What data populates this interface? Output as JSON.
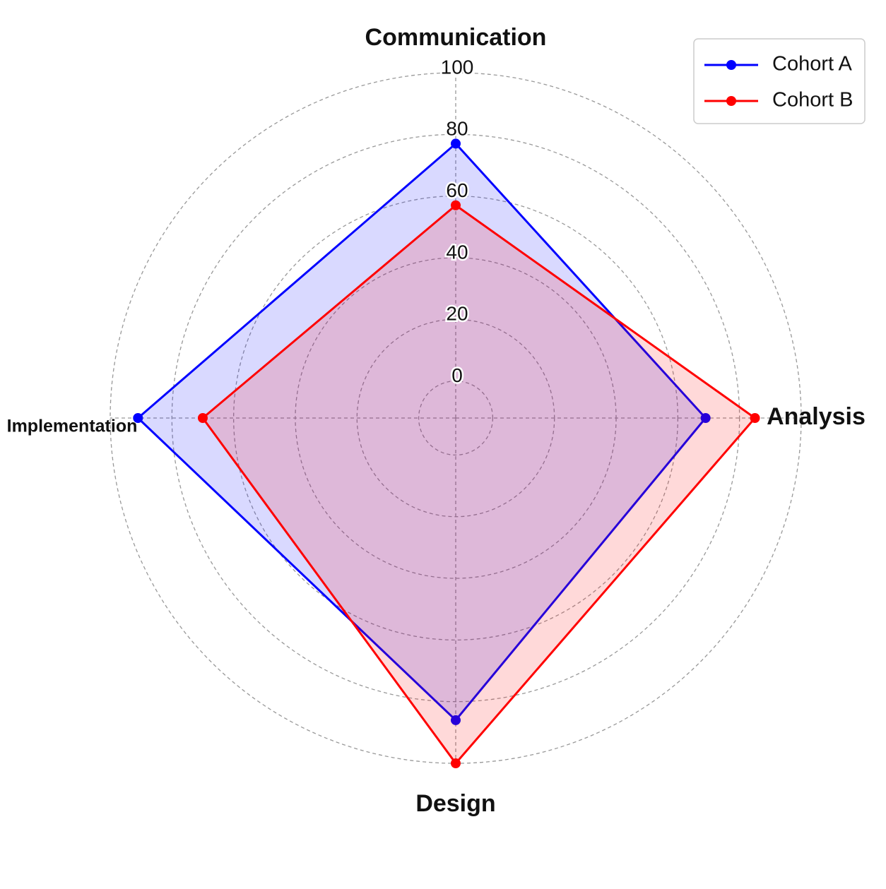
{
  "chart_data": {
    "type": "radar",
    "categories": [
      "Communication",
      "Analysis",
      "Design",
      "Implementation"
    ],
    "series": [
      {
        "name": "Cohort A",
        "color": "#0000ff",
        "values": [
          77,
          69,
          86,
          91
        ]
      },
      {
        "name": "Cohort B",
        "color": "#ff0000",
        "values": [
          57,
          85,
          100,
          70
        ]
      }
    ],
    "ylim": [
      -12,
      100
    ],
    "yticks": [
      0,
      20,
      40,
      60,
      80,
      100
    ],
    "grid": true,
    "legend": "upper right"
  }
}
